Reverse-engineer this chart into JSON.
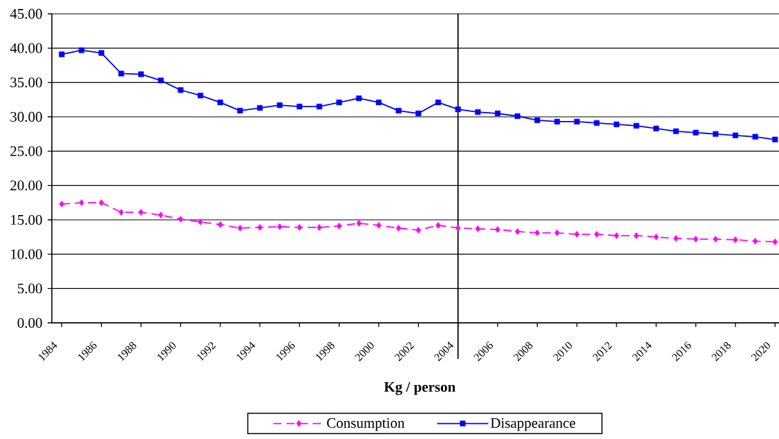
{
  "chart_data": {
    "type": "line",
    "xlabel": "Kg / person",
    "x": [
      1984,
      1985,
      1986,
      1987,
      1988,
      1989,
      1990,
      1991,
      1992,
      1993,
      1994,
      1995,
      1996,
      1997,
      1998,
      1999,
      2000,
      2001,
      2002,
      2003,
      2004,
      2005,
      2006,
      2007,
      2008,
      2009,
      2010,
      2011,
      2012,
      2013,
      2014,
      2015,
      2016,
      2017,
      2018,
      2019,
      2020
    ],
    "xlim": [
      1983.5,
      2020.2
    ],
    "xticks": [
      1984,
      1986,
      1988,
      1990,
      1992,
      1994,
      1996,
      1998,
      2000,
      2002,
      2004,
      2006,
      2008,
      2010,
      2012,
      2014,
      2016,
      2018,
      2020
    ],
    "ylim": [
      0,
      45
    ],
    "yticks": [
      {
        "value": 0,
        "label": "0.00"
      },
      {
        "value": 5,
        "label": "5.00"
      },
      {
        "value": 10,
        "label": "10.00"
      },
      {
        "value": 15,
        "label": "15.00"
      },
      {
        "value": 20,
        "label": "20.00"
      },
      {
        "value": 25,
        "label": "25.00"
      },
      {
        "value": 30,
        "label": "30.00"
      },
      {
        "value": 35,
        "label": "35.00"
      },
      {
        "value": 40,
        "label": "40.00"
      },
      {
        "value": 45,
        "label": "45.00"
      }
    ],
    "series": [
      {
        "name": "Consumption",
        "color": "#ff00ff",
        "marker": "diamond",
        "line_style": "dashed",
        "values": [
          17.3,
          17.5,
          17.5,
          16.1,
          16.1,
          15.7,
          15.1,
          14.7,
          14.3,
          13.8,
          13.9,
          14.0,
          13.9,
          13.9,
          14.1,
          14.5,
          14.2,
          13.8,
          13.5,
          14.2,
          13.8,
          13.7,
          13.6,
          13.3,
          13.1,
          13.1,
          12.9,
          12.9,
          12.7,
          12.7,
          12.5,
          12.3,
          12.2,
          12.2,
          12.1,
          11.9,
          11.8
        ]
      },
      {
        "name": "Disappearance",
        "color": "#0000ff",
        "marker": "square",
        "line_style": "solid",
        "values": [
          39.1,
          39.7,
          39.3,
          36.3,
          36.2,
          35.3,
          33.9,
          33.1,
          32.1,
          30.9,
          31.3,
          31.7,
          31.5,
          31.5,
          32.1,
          32.7,
          32.1,
          30.9,
          30.5,
          32.1,
          31.1,
          30.7,
          30.5,
          30.1,
          29.5,
          29.3,
          29.3,
          29.1,
          28.9,
          28.7,
          28.3,
          27.9,
          27.7,
          27.5,
          27.3,
          27.1,
          26.7
        ]
      }
    ],
    "ref_lines": [
      {
        "axis": "x",
        "value": 2004,
        "color": "#000000"
      }
    ],
    "grid": "y",
    "legend": "bottom"
  }
}
